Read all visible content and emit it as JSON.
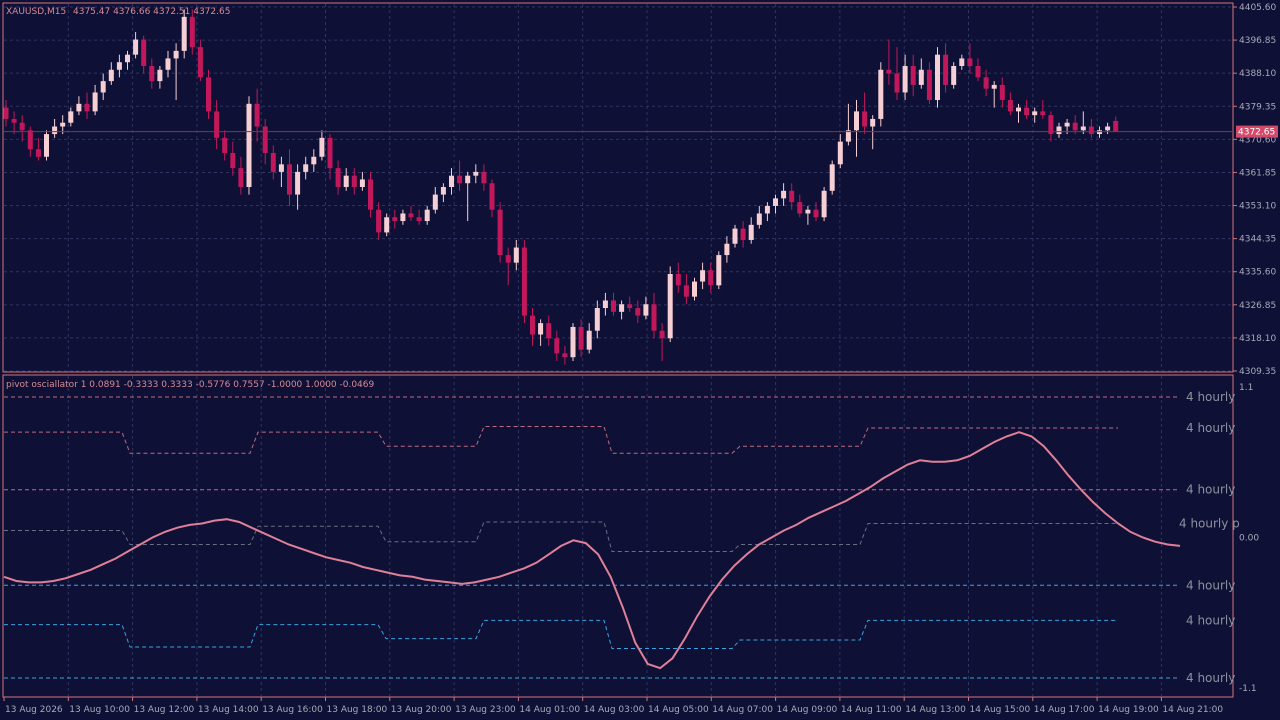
{
  "colors": {
    "background": "#0e1035",
    "frame": "#d2767a",
    "grid": "#2f3460",
    "bull": "#f6cfd4",
    "bear": "#c2185b",
    "text": "#d88a95",
    "scale_text": "#a8a9b8",
    "osc_line": "#e08098",
    "level_pink": "#c06a80",
    "level_grey": "#6b6e82",
    "level_blue": "#3aa3e0",
    "price_tag_bg": "#d44a6a",
    "price_tag_text": "#ffffff",
    "level_label": "#8f909e"
  },
  "header": {
    "symbol": "XAUUSD,M15",
    "ohlc": "4375.47 4376.66 4372.51 4372.65"
  },
  "price_axis": {
    "ticks": [
      "4405.60",
      "4396.85",
      "4388.10",
      "4379.35",
      "4370.60",
      "4361.85",
      "4353.10",
      "4344.35",
      "4335.60",
      "4326.85",
      "4318.10",
      "4309.35"
    ],
    "range": [
      4309.35,
      4405.6
    ],
    "current_price": "4372.65",
    "current_value": 4372.65
  },
  "oscillator": {
    "header": "pivot osciallator 1 0.0891 -0.3333 0.3333 -0.5776 0.7557 -1.0000 1.0000 -0.0469",
    "axis_ticks": [
      "1.1",
      "0.00",
      "-1.1"
    ],
    "range": [
      -1.1,
      1.1
    ],
    "level_labels": [
      "4 hourly",
      "4 hourly",
      "4 hourly",
      "4 hourly p",
      "4 hourly",
      "4 hourly",
      "4 hourly"
    ]
  },
  "time_axis": {
    "labels": [
      "13 Aug 2026",
      "13 Aug 10:00",
      "13 Aug 12:00",
      "13 Aug 14:00",
      "13 Aug 16:00",
      "13 Aug 18:00",
      "13 Aug 20:00",
      "13 Aug 23:00",
      "14 Aug 01:00",
      "14 Aug 03:00",
      "14 Aug 05:00",
      "14 Aug 07:00",
      "14 Aug 09:00",
      "14 Aug 11:00",
      "14 Aug 13:00",
      "14 Aug 15:00",
      "14 Aug 17:00",
      "14 Aug 19:00",
      "14 Aug 21:00"
    ]
  },
  "chart_data": {
    "type": "candlestick",
    "symbol": "XAUUSD",
    "timeframe": "M15",
    "candles": [
      [
        4379,
        4381,
        4374,
        4376
      ],
      [
        4376,
        4378,
        4372,
        4375
      ],
      [
        4375,
        4377,
        4370,
        4373
      ],
      [
        4373,
        4374,
        4366,
        4368
      ],
      [
        4368,
        4371,
        4365,
        4366
      ],
      [
        4366,
        4373,
        4365,
        4372
      ],
      [
        4372,
        4376,
        4371,
        4374
      ],
      [
        4374,
        4377,
        4372,
        4375
      ],
      [
        4375,
        4379,
        4374,
        4378
      ],
      [
        4378,
        4382,
        4377,
        4380
      ],
      [
        4380,
        4383,
        4376,
        4378
      ],
      [
        4378,
        4385,
        4377,
        4383
      ],
      [
        4383,
        4388,
        4381,
        4386
      ],
      [
        4386,
        4391,
        4385,
        4389
      ],
      [
        4389,
        4393,
        4387,
        4391
      ],
      [
        4391,
        4394,
        4389,
        4393
      ],
      [
        4393,
        4399,
        4392,
        4397
      ],
      [
        4397,
        4398,
        4388,
        4390
      ],
      [
        4390,
        4392,
        4384,
        4386
      ],
      [
        4386,
        4390,
        4384,
        4389
      ],
      [
        4389,
        4394,
        4387,
        4392
      ],
      [
        4392,
        4396,
        4381,
        4394
      ],
      [
        4394,
        4405,
        4392,
        4403
      ],
      [
        4403,
        4405,
        4393,
        4395
      ],
      [
        4395,
        4397,
        4386,
        4387
      ],
      [
        4387,
        4389,
        4376,
        4378
      ],
      [
        4378,
        4381,
        4368,
        4371
      ],
      [
        4371,
        4373,
        4365,
        4367
      ],
      [
        4367,
        4370,
        4361,
        4363
      ],
      [
        4363,
        4366,
        4356,
        4358
      ],
      [
        4358,
        4382,
        4356,
        4380
      ],
      [
        4380,
        4384,
        4370,
        4374
      ],
      [
        4374,
        4376,
        4364,
        4367
      ],
      [
        4367,
        4369,
        4360,
        4362
      ],
      [
        4362,
        4366,
        4358,
        4364
      ],
      [
        4364,
        4368,
        4353,
        4356
      ],
      [
        4356,
        4364,
        4352,
        4362
      ],
      [
        4362,
        4366,
        4360,
        4364
      ],
      [
        4364,
        4368,
        4362,
        4366
      ],
      [
        4366,
        4373,
        4365,
        4371
      ],
      [
        4371,
        4372,
        4360,
        4363
      ],
      [
        4363,
        4365,
        4356,
        4358
      ],
      [
        4358,
        4363,
        4357,
        4361
      ],
      [
        4361,
        4363,
        4356,
        4358
      ],
      [
        4358,
        4362,
        4357,
        4360
      ],
      [
        4360,
        4362,
        4350,
        4352
      ],
      [
        4352,
        4354,
        4344,
        4346
      ],
      [
        4346,
        4351,
        4345,
        4350
      ],
      [
        4350,
        4352,
        4347,
        4349
      ],
      [
        4349,
        4352,
        4348,
        4351
      ],
      [
        4351,
        4353,
        4349,
        4350
      ],
      [
        4350,
        4352,
        4348,
        4349
      ],
      [
        4349,
        4353,
        4348,
        4352
      ],
      [
        4352,
        4358,
        4351,
        4356
      ],
      [
        4356,
        4359,
        4354,
        4358
      ],
      [
        4358,
        4363,
        4356,
        4361
      ],
      [
        4361,
        4365,
        4357,
        4359
      ],
      [
        4359,
        4362,
        4349,
        4361
      ],
      [
        4361,
        4364,
        4359,
        4362
      ],
      [
        4362,
        4364,
        4357,
        4359
      ],
      [
        4359,
        4360,
        4350,
        4352
      ],
      [
        4352,
        4354,
        4338,
        4340
      ],
      [
        4340,
        4342,
        4332,
        4338
      ],
      [
        4338,
        4344,
        4336,
        4342
      ],
      [
        4342,
        4344,
        4322,
        4324
      ],
      [
        4324,
        4326,
        4316,
        4319
      ],
      [
        4319,
        4323,
        4316,
        4322
      ],
      [
        4322,
        4324,
        4316,
        4318
      ],
      [
        4318,
        4320,
        4312,
        4314
      ],
      [
        4314,
        4316,
        4311,
        4313
      ],
      [
        4313,
        4322,
        4312,
        4321
      ],
      [
        4321,
        4323,
        4313,
        4315
      ],
      [
        4315,
        4322,
        4314,
        4320
      ],
      [
        4320,
        4328,
        4318,
        4326
      ],
      [
        4326,
        4330,
        4324,
        4328
      ],
      [
        4328,
        4330,
        4324,
        4325
      ],
      [
        4325,
        4328,
        4323,
        4327
      ],
      [
        4327,
        4329,
        4325,
        4326
      ],
      [
        4326,
        4328,
        4322,
        4324
      ],
      [
        4324,
        4329,
        4323,
        4327
      ],
      [
        4327,
        4330,
        4318,
        4320
      ],
      [
        4320,
        4322,
        4312,
        4318
      ],
      [
        4318,
        4337,
        4317,
        4335
      ],
      [
        4335,
        4338,
        4330,
        4332
      ],
      [
        4332,
        4335,
        4327,
        4329
      ],
      [
        4329,
        4334,
        4328,
        4333
      ],
      [
        4333,
        4338,
        4331,
        4336
      ],
      [
        4336,
        4338,
        4330,
        4332
      ],
      [
        4332,
        4341,
        4331,
        4340
      ],
      [
        4340,
        4345,
        4338,
        4343
      ],
      [
        4343,
        4348,
        4342,
        4347
      ],
      [
        4347,
        4349,
        4342,
        4344
      ],
      [
        4344,
        4350,
        4343,
        4348
      ],
      [
        4348,
        4353,
        4347,
        4351
      ],
      [
        4351,
        4354,
        4349,
        4353
      ],
      [
        4353,
        4356,
        4351,
        4355
      ],
      [
        4355,
        4359,
        4353,
        4357
      ],
      [
        4357,
        4359,
        4352,
        4354
      ],
      [
        4354,
        4356,
        4350,
        4351
      ],
      [
        4351,
        4353,
        4348,
        4352
      ],
      [
        4352,
        4354,
        4349,
        4350
      ],
      [
        4350,
        4358,
        4349,
        4357
      ],
      [
        4357,
        4365,
        4356,
        4364
      ],
      [
        4364,
        4372,
        4363,
        4370
      ],
      [
        4370,
        4380,
        4369,
        4373
      ],
      [
        4373,
        4381,
        4366,
        4378
      ],
      [
        4378,
        4383,
        4372,
        4374
      ],
      [
        4374,
        4377,
        4368,
        4376
      ],
      [
        4376,
        4391,
        4374,
        4389
      ],
      [
        4389,
        4397,
        4385,
        4388
      ],
      [
        4388,
        4395,
        4381,
        4383
      ],
      [
        4383,
        4393,
        4381,
        4390
      ],
      [
        4390,
        4393,
        4382,
        4385
      ],
      [
        4385,
        4392,
        4384,
        4389
      ],
      [
        4389,
        4391,
        4380,
        4381
      ],
      [
        4381,
        4395,
        4379,
        4393
      ],
      [
        4393,
        4396,
        4383,
        4385
      ],
      [
        4385,
        4391,
        4384,
        4390
      ],
      [
        4390,
        4393,
        4389,
        4392
      ],
      [
        4392,
        4396,
        4388,
        4390
      ],
      [
        4390,
        4392,
        4386,
        4387
      ],
      [
        4387,
        4389,
        4382,
        4384
      ],
      [
        4384,
        4386,
        4379,
        4385
      ],
      [
        4385,
        4387,
        4379,
        4381
      ],
      [
        4381,
        4383,
        4377,
        4378
      ],
      [
        4378,
        4380,
        4375,
        4379
      ],
      [
        4379,
        4381,
        4376,
        4377
      ],
      [
        4377,
        4379,
        4375,
        4378
      ],
      [
        4378,
        4381,
        4376,
        4377
      ],
      [
        4377,
        4378,
        4370,
        4372
      ],
      [
        4372,
        4375,
        4371,
        4374
      ],
      [
        4374,
        4376,
        4372,
        4375
      ],
      [
        4375,
        4377,
        4372,
        4373
      ],
      [
        4373,
        4378,
        4372,
        4374
      ],
      [
        4374,
        4376,
        4371,
        4372
      ],
      [
        4372,
        4374,
        4371,
        4373
      ],
      [
        4373,
        4375,
        4372,
        4374
      ],
      [
        4375.47,
        4376.66,
        4372.51,
        4372.65
      ]
    ],
    "oscillator_line": [
      -0.28,
      -0.31,
      -0.32,
      -0.32,
      -0.31,
      -0.29,
      -0.26,
      -0.23,
      -0.19,
      -0.15,
      -0.1,
      -0.05,
      0.0,
      0.04,
      0.07,
      0.09,
      0.1,
      0.12,
      0.13,
      0.11,
      0.07,
      0.03,
      -0.01,
      -0.05,
      -0.08,
      -0.11,
      -0.14,
      -0.16,
      -0.18,
      -0.21,
      -0.23,
      -0.25,
      -0.27,
      -0.28,
      -0.3,
      -0.31,
      -0.32,
      -0.33,
      -0.32,
      -0.3,
      -0.28,
      -0.25,
      -0.22,
      -0.18,
      -0.12,
      -0.06,
      -0.02,
      -0.04,
      -0.12,
      -0.28,
      -0.5,
      -0.75,
      -0.9,
      -0.93,
      -0.86,
      -0.72,
      -0.56,
      -0.42,
      -0.3,
      -0.2,
      -0.12,
      -0.05,
      0.0,
      0.05,
      0.09,
      0.14,
      0.18,
      0.22,
      0.26,
      0.31,
      0.36,
      0.42,
      0.47,
      0.52,
      0.55,
      0.54,
      0.54,
      0.55,
      0.58,
      0.63,
      0.68,
      0.72,
      0.75,
      0.72,
      0.65,
      0.55,
      0.44,
      0.34,
      0.25,
      0.17,
      0.1,
      0.04,
      0.0,
      -0.03,
      -0.05,
      -0.06
    ],
    "levels": [
      {
        "color": "pink",
        "values": [
          1.0
        ]
      },
      {
        "color": "pink",
        "segments": [
          [
            0.75,
            0.6
          ],
          [
            0.6,
            0.6
          ],
          [
            0.75,
            0.75
          ],
          [
            0.65,
            0.65
          ],
          [
            0.79,
            0.79
          ],
          [
            0.6,
            0.6
          ],
          [
            0.65,
            0.65
          ],
          [
            0.78,
            0.78
          ]
        ]
      },
      {
        "color": "pink",
        "values": [
          0.34
        ]
      },
      {
        "color": "grey",
        "segments": [
          [
            0.05,
            -0.05
          ],
          [
            -0.05,
            -0.05
          ],
          [
            0.08,
            0.08
          ],
          [
            -0.03,
            -0.03
          ],
          [
            0.11,
            0.11
          ],
          [
            -0.1,
            -0.1
          ],
          [
            -0.05,
            -0.05
          ],
          [
            0.1,
            0.1
          ]
        ]
      },
      {
        "color": "blue",
        "values": [
          -0.34
        ]
      },
      {
        "color": "blue",
        "segments": [
          [
            -0.62,
            -0.78
          ],
          [
            -0.78,
            -0.78
          ],
          [
            -0.62,
            -0.62
          ],
          [
            -0.72,
            -0.72
          ],
          [
            -0.59,
            -0.59
          ],
          [
            -0.79,
            -0.79
          ],
          [
            -0.73,
            -0.73
          ],
          [
            -0.59,
            -0.59
          ]
        ]
      },
      {
        "color": "blue",
        "values": [
          -1.0
        ]
      }
    ]
  }
}
